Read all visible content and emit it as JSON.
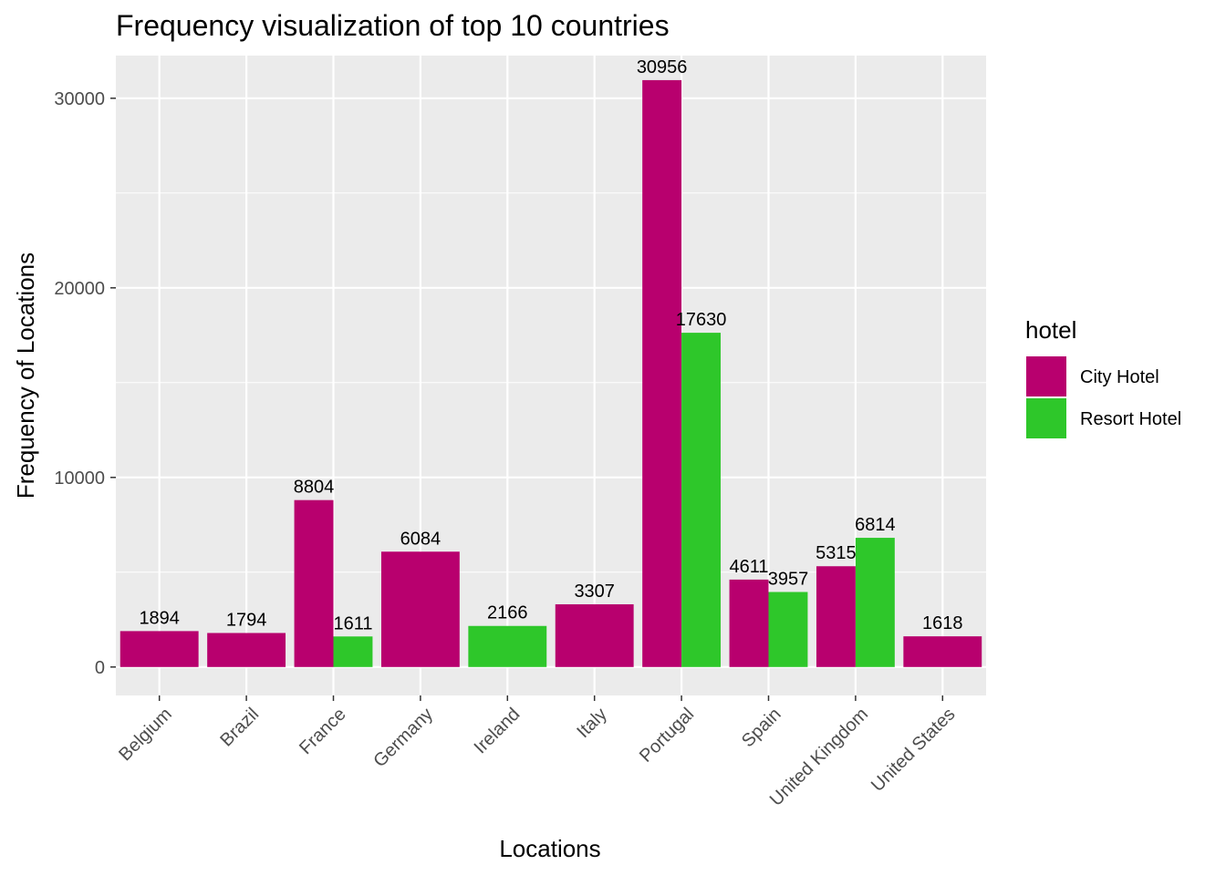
{
  "chart_data": {
    "type": "bar",
    "title": "Frequency visualization of top 10 countries",
    "xlabel": "Locations",
    "ylabel": "Frequency of Locations",
    "ylim": [
      -1500,
      32250
    ],
    "yticks": [
      0,
      10000,
      20000,
      30000
    ],
    "grid": true,
    "legend": {
      "title": "hotel",
      "position": "right"
    },
    "categories": [
      "Belgium",
      "Brazil",
      "France",
      "Germany",
      "Ireland",
      "Italy",
      "Portugal",
      "Spain",
      "United Kingdom",
      "United States"
    ],
    "series": [
      {
        "name": "City Hotel",
        "color": "#B8006E",
        "values": [
          1894,
          1794,
          8804,
          6084,
          null,
          3307,
          30956,
          4611,
          5315,
          1618
        ]
      },
      {
        "name": "Resort Hotel",
        "color": "#2EC72A",
        "values": [
          null,
          null,
          1611,
          null,
          2166,
          null,
          17630,
          3957,
          6814,
          null
        ]
      }
    ]
  }
}
